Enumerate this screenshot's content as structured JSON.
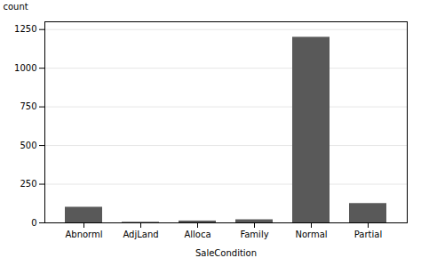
{
  "chart_data": {
    "type": "bar",
    "categories": [
      "Abnorml",
      "AdjLand",
      "Alloca",
      "Family",
      "Normal",
      "Partial"
    ],
    "values": [
      101,
      4,
      12,
      20,
      1200,
      125
    ],
    "color": "#595959",
    "xlabel": "SaleCondition",
    "ylabel": "count",
    "ylim": [
      0,
      1300
    ],
    "yticks": [
      0,
      250,
      500,
      750,
      1000,
      1250
    ],
    "grid": true
  }
}
